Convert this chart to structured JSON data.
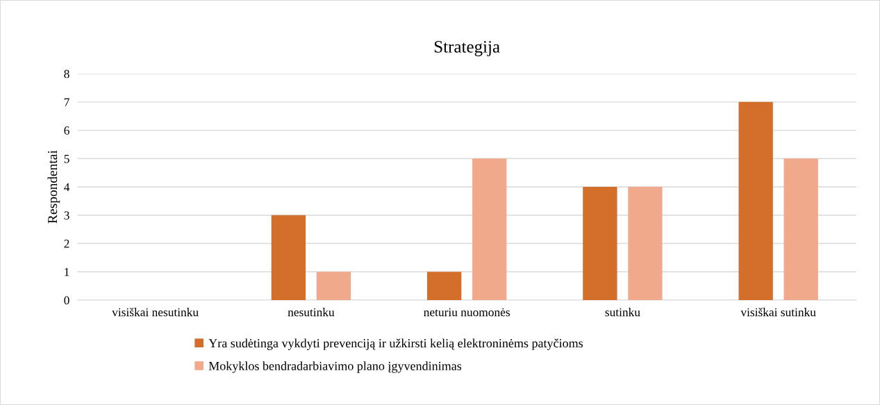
{
  "chart_data": {
    "type": "bar",
    "title": "Strategija",
    "ylabel": "Respondentai",
    "categories": [
      "visiškai nesutinku",
      "nesutinku",
      "neturiu nuomonės",
      "sutinku",
      "visiškai sutinku"
    ],
    "series": [
      {
        "name": "Yra sudėtinga vykdyti prevenciją ir užkirsti kelią elektroninėms patyčioms",
        "color": "#d26e2a",
        "values": [
          0,
          3,
          1,
          4,
          7
        ]
      },
      {
        "name": "Mokyklos bendradarbiavimo plano įgyvendinimas",
        "color": "#f0a98a",
        "values": [
          0,
          1,
          5,
          4,
          5
        ]
      }
    ],
    "ylim": [
      0,
      8
    ],
    "yticks": [
      0,
      1,
      2,
      3,
      4,
      5,
      6,
      7,
      8
    ],
    "grid": "y",
    "legend": "bottom"
  }
}
